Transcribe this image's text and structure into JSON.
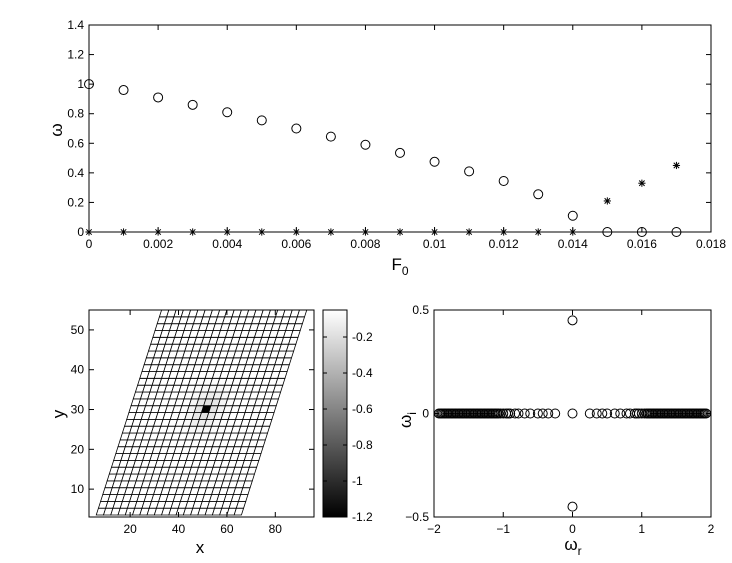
{
  "chart_data": [
    {
      "type": "scatter",
      "xlabel": "F",
      "xlabel_sub": "0",
      "ylabel": "ω",
      "xlim": [
        0,
        0.018
      ],
      "ylim": [
        0,
        1.4
      ],
      "xticks": [
        0,
        0.002,
        0.004,
        0.006,
        0.008,
        0.01,
        0.012,
        0.014,
        0.016,
        0.018
      ],
      "xtick_labels": [
        "0",
        "0.002",
        "0.004",
        "0.006",
        "0.008",
        "0.01",
        "0.012",
        "0.014",
        "0.016",
        "0.018"
      ],
      "yticks": [
        0,
        0.2,
        0.4,
        0.6,
        0.8,
        1,
        1.2,
        1.4
      ],
      "ytick_labels": [
        "0",
        "0.2",
        "0.4",
        "0.6",
        "0.8",
        "1",
        "1.2",
        "1.4"
      ],
      "series": [
        {
          "marker": "circle",
          "x": [
            0,
            0.001,
            0.002,
            0.003,
            0.004,
            0.005,
            0.006,
            0.007,
            0.008,
            0.009,
            0.01,
            0.011,
            0.012,
            0.013,
            0.014,
            0.015,
            0.016,
            0.017
          ],
          "y": [
            1.0,
            0.96,
            0.91,
            0.86,
            0.81,
            0.755,
            0.7,
            0.645,
            0.59,
            0.535,
            0.475,
            0.41,
            0.345,
            0.255,
            0.11,
            0,
            0,
            0
          ]
        },
        {
          "marker": "star",
          "x": [
            0,
            0.001,
            0.002,
            0.003,
            0.004,
            0.005,
            0.006,
            0.007,
            0.008,
            0.009,
            0.01,
            0.011,
            0.012,
            0.013,
            0.014,
            0.015,
            0.016,
            0.017
          ],
          "y": [
            0,
            0,
            0,
            0,
            0,
            0,
            0,
            0,
            0,
            0,
            0,
            0,
            0,
            0,
            0,
            0.21,
            0.33,
            0.45
          ]
        }
      ]
    },
    {
      "type": "heatmap",
      "xlabel": "x",
      "ylabel": "y",
      "xlim": [
        3,
        96
      ],
      "ylim": [
        3,
        55
      ],
      "xticks": [
        20,
        40,
        60,
        80
      ],
      "xtick_labels": [
        "20",
        "40",
        "60",
        "80"
      ],
      "yticks": [
        10,
        20,
        30,
        40,
        50
      ],
      "ytick_labels": [
        "10",
        "20",
        "30",
        "40",
        "50"
      ],
      "grid": {
        "columns": 20,
        "rows": 30,
        "bottom_left": [
          6,
          3.5
        ],
        "bottom_right": [
          66,
          3.5
        ],
        "top_left": [
          33,
          55
        ],
        "min_cell": [
          10,
          15
        ],
        "min_value": -1.2
      },
      "colorbar": {
        "range": [
          -1.2,
          -0.05
        ],
        "ticks": [
          -0.2,
          -0.4,
          -0.6,
          -0.8,
          -1,
          -1.2
        ],
        "tick_labels": [
          "-0.2",
          "-0.4",
          "-0.6",
          "-0.8",
          "-1",
          "-1.2"
        ],
        "colormap": "gray"
      }
    },
    {
      "type": "scatter",
      "xlabel": "ω",
      "xlabel_sub": "r",
      "ylabel": "ω",
      "ylabel_sub": "i",
      "xlim": [
        -2,
        2
      ],
      "ylim": [
        -0.5,
        0.5
      ],
      "xticks": [
        -2,
        -1,
        0,
        1,
        2
      ],
      "xtick_labels": [
        "−2",
        "−1",
        "0",
        "1",
        "2"
      ],
      "yticks": [
        -0.5,
        0,
        0.5
      ],
      "ytick_labels": [
        "−0.5",
        "0",
        "0.5"
      ],
      "series": [
        {
          "marker": "circle",
          "x": [
            -1.93,
            -1.91,
            -1.89,
            -1.87,
            -1.85,
            -1.83,
            -1.81,
            -1.79,
            -1.77,
            -1.75,
            -1.73,
            -1.71,
            -1.69,
            -1.67,
            -1.65,
            -1.63,
            -1.61,
            -1.59,
            -1.57,
            -1.55,
            -1.53,
            -1.51,
            -1.49,
            -1.47,
            -1.45,
            -1.43,
            -1.41,
            -1.39,
            -1.37,
            -1.35,
            -1.33,
            -1.31,
            -1.29,
            -1.27,
            -1.25,
            -1.23,
            -1.21,
            -1.19,
            -1.17,
            -1.15,
            -1.13,
            -1.11,
            -1.09,
            -1.07,
            -1.04,
            -1.0,
            -0.96,
            -0.93,
            -0.9,
            -0.83,
            -0.78,
            -0.69,
            -0.61,
            -0.5,
            -0.43,
            -0.35,
            -0.25,
            0,
            0,
            0,
            0.25,
            0.35,
            0.43,
            0.5,
            0.61,
            0.69,
            0.78,
            0.83,
            0.9,
            0.93,
            0.96,
            1.0,
            1.04,
            1.07,
            1.09,
            1.11,
            1.13,
            1.15,
            1.17,
            1.19,
            1.21,
            1.23,
            1.25,
            1.27,
            1.29,
            1.31,
            1.33,
            1.35,
            1.37,
            1.39,
            1.41,
            1.43,
            1.45,
            1.47,
            1.49,
            1.51,
            1.53,
            1.55,
            1.57,
            1.59,
            1.61,
            1.63,
            1.65,
            1.67,
            1.69,
            1.71,
            1.73,
            1.75,
            1.77,
            1.79,
            1.81,
            1.83,
            1.85,
            1.87,
            1.89,
            1.91,
            1.93
          ],
          "y": [
            0,
            0,
            0,
            0,
            0,
            0,
            0,
            0,
            0,
            0,
            0,
            0,
            0,
            0,
            0,
            0,
            0,
            0,
            0,
            0,
            0,
            0,
            0,
            0,
            0,
            0,
            0,
            0,
            0,
            0,
            0,
            0,
            0,
            0,
            0,
            0,
            0,
            0,
            0,
            0,
            0,
            0,
            0,
            0,
            0,
            0,
            0,
            0,
            0,
            0,
            0,
            0,
            0,
            0,
            0,
            0,
            0,
            0.45,
            0,
            -0.45,
            0,
            0,
            0,
            0,
            0,
            0,
            0,
            0,
            0,
            0,
            0,
            0,
            0,
            0,
            0,
            0,
            0,
            0,
            0,
            0,
            0,
            0,
            0,
            0,
            0,
            0,
            0,
            0,
            0,
            0,
            0,
            0,
            0,
            0,
            0,
            0,
            0,
            0,
            0,
            0,
            0,
            0,
            0,
            0,
            0,
            0,
            0,
            0,
            0,
            0,
            0,
            0,
            0,
            0,
            0,
            0,
            0
          ]
        }
      ]
    }
  ]
}
